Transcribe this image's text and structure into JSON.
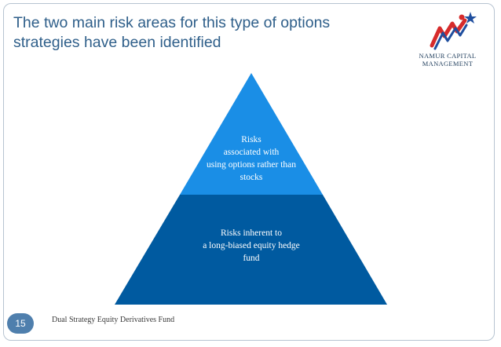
{
  "slide": {
    "title": "The two main risk areas for this type of options strategies have been identified",
    "logo": {
      "icon": "namur-capital-runner-star-logo",
      "text": "NAMUR CAPITAL\nMANAGEMENT"
    },
    "pyramid": {
      "tiers": [
        {
          "label": "Risks\nassociated with\nusing options rather than\nstocks",
          "color": "#1a8ee6"
        },
        {
          "label": "Risks inherent to\na long-biased equity hedge\nfund",
          "color": "#005aa0"
        }
      ]
    },
    "footer": {
      "page_number": "15",
      "text": "Dual Strategy Equity Derivatives Fund"
    },
    "colors": {
      "title": "#2f5f8a",
      "badge": "#4f7fad",
      "frame": "#b7c4d1"
    }
  }
}
